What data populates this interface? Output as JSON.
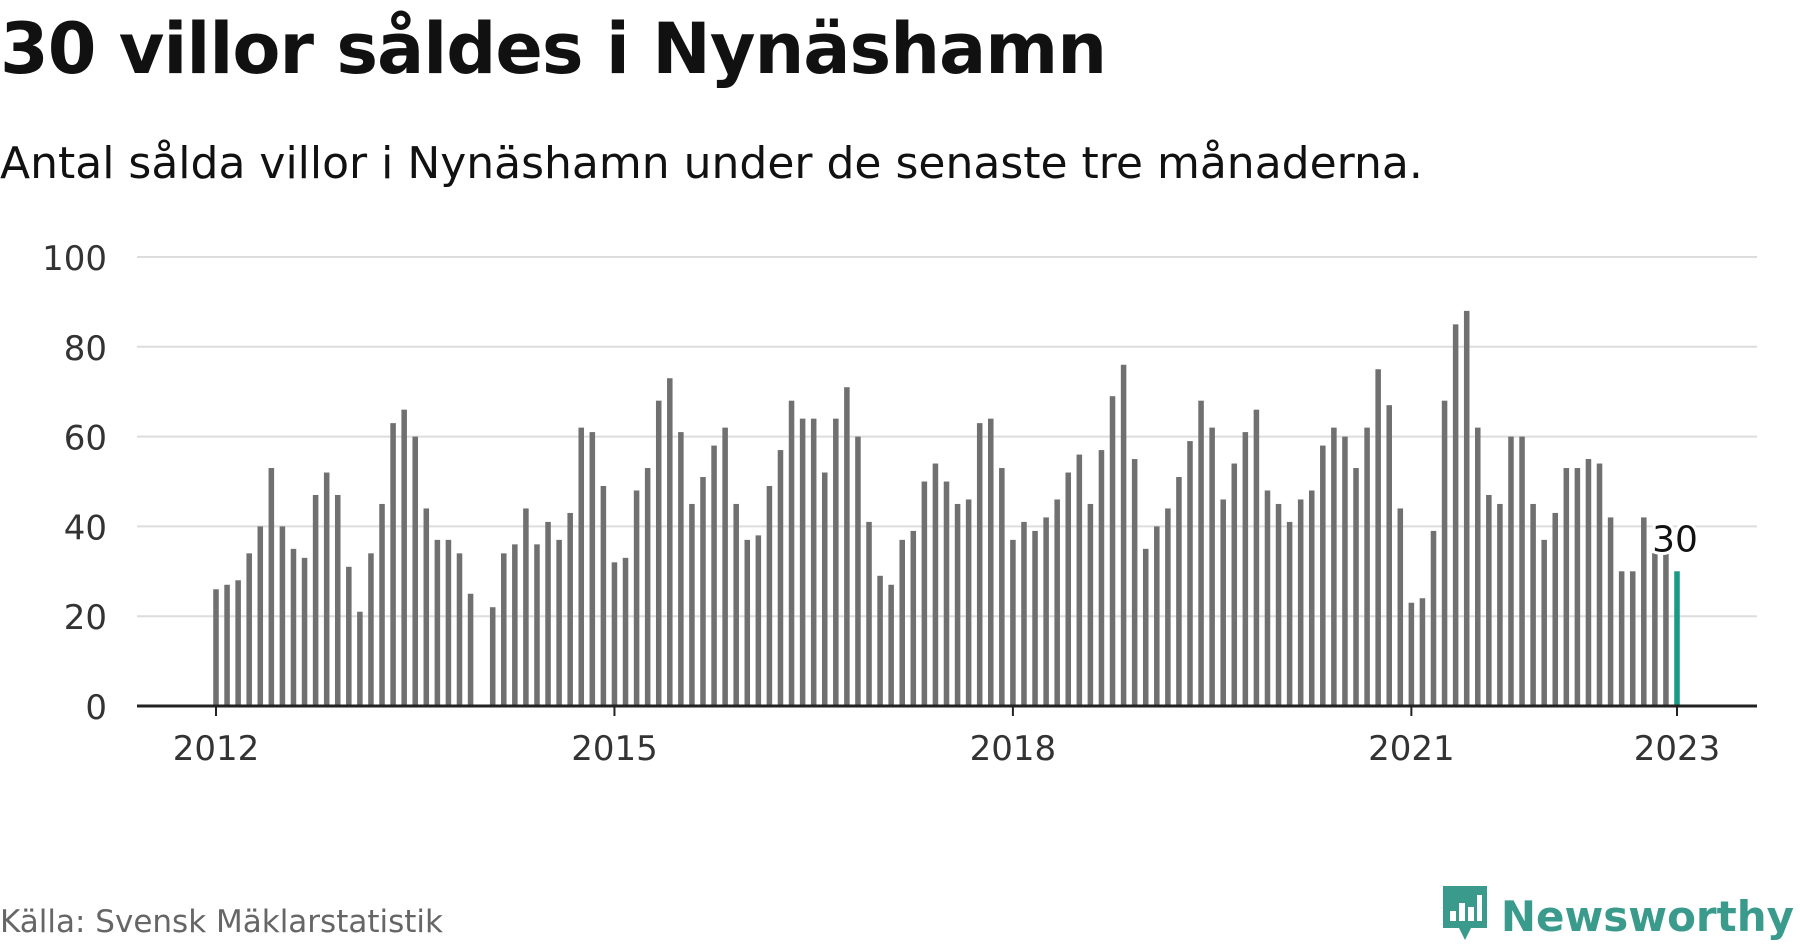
{
  "header": {
    "title": "30 villor såldes i Nynäshamn",
    "subtitle": "Antal sålda villor i Nynäshamn under de senaste tre månaderna."
  },
  "footer": {
    "source": "Källa: Svensk Mäklarstatistik",
    "brand": "Newsworthy",
    "brand_icon": "chart-bubble-icon"
  },
  "colors": {
    "bar": "#707070",
    "highlight": "#1a9a86",
    "grid": "#dddddd",
    "axis": "#222222",
    "brand": "#3a9a8c"
  },
  "chart_data": {
    "type": "bar",
    "title": "30 villor såldes i Nynäshamn",
    "xlabel": "",
    "ylabel": "",
    "ylim": [
      0,
      100
    ],
    "y_ticks": [
      0,
      20,
      40,
      60,
      80,
      100
    ],
    "x_ticks": [
      "2012",
      "2015",
      "2018",
      "2021",
      "2023"
    ],
    "x_start": "2012-01",
    "x_end": "2023-01",
    "highlight_label": "30",
    "grid": true,
    "legend": "none",
    "x": [
      "2012-01",
      "2012-02",
      "2012-03",
      "2012-04",
      "2012-05",
      "2012-06",
      "2012-07",
      "2012-08",
      "2012-09",
      "2012-10",
      "2012-11",
      "2012-12",
      "2013-01",
      "2013-02",
      "2013-03",
      "2013-04",
      "2013-05",
      "2013-06",
      "2013-07",
      "2013-08",
      "2013-09",
      "2013-10",
      "2013-11",
      "2013-12",
      "2014-01",
      "2014-02",
      "2014-03",
      "2014-04",
      "2014-05",
      "2014-06",
      "2014-07",
      "2014-08",
      "2014-09",
      "2014-10",
      "2014-11",
      "2014-12",
      "2015-01",
      "2015-02",
      "2015-03",
      "2015-04",
      "2015-05",
      "2015-06",
      "2015-07",
      "2015-08",
      "2015-09",
      "2015-10",
      "2015-11",
      "2015-12",
      "2016-01",
      "2016-02",
      "2016-03",
      "2016-04",
      "2016-05",
      "2016-06",
      "2016-07",
      "2016-08",
      "2016-09",
      "2016-10",
      "2016-11",
      "2016-12",
      "2017-01",
      "2017-02",
      "2017-03",
      "2017-04",
      "2017-05",
      "2017-06",
      "2017-07",
      "2017-08",
      "2017-09",
      "2017-10",
      "2017-11",
      "2017-12",
      "2018-01",
      "2018-02",
      "2018-03",
      "2018-04",
      "2018-05",
      "2018-06",
      "2018-07",
      "2018-08",
      "2018-09",
      "2018-10",
      "2018-11",
      "2018-12",
      "2019-01",
      "2019-02",
      "2019-03",
      "2019-04",
      "2019-05",
      "2019-06",
      "2019-07",
      "2019-08",
      "2019-09",
      "2019-10",
      "2019-11",
      "2019-12",
      "2020-01",
      "2020-02",
      "2020-03",
      "2020-04",
      "2020-05",
      "2020-06",
      "2020-07",
      "2020-08",
      "2020-09",
      "2020-10",
      "2020-11",
      "2020-12",
      "2021-01",
      "2021-02",
      "2021-03",
      "2021-04",
      "2021-05",
      "2021-06",
      "2021-07",
      "2021-08",
      "2021-09",
      "2021-10",
      "2021-11",
      "2021-12",
      "2022-01",
      "2022-02",
      "2022-03",
      "2022-04",
      "2022-05",
      "2022-06",
      "2022-07",
      "2022-08",
      "2022-09",
      "2022-10",
      "2022-11",
      "2022-12",
      "2023-01"
    ],
    "values": [
      26,
      27,
      28,
      34,
      40,
      53,
      40,
      35,
      33,
      47,
      52,
      47,
      31,
      21,
      34,
      45,
      63,
      66,
      60,
      44,
      37,
      37,
      34,
      25,
      null,
      22,
      34,
      36,
      44,
      36,
      41,
      37,
      43,
      62,
      61,
      49,
      32,
      33,
      48,
      53,
      68,
      73,
      61,
      45,
      51,
      58,
      62,
      45,
      37,
      38,
      49,
      57,
      68,
      64,
      64,
      52,
      64,
      71,
      60,
      41,
      29,
      27,
      37,
      39,
      50,
      54,
      50,
      45,
      46,
      63,
      64,
      53,
      37,
      41,
      39,
      42,
      46,
      52,
      56,
      45,
      57,
      69,
      76,
      55,
      35,
      40,
      44,
      51,
      59,
      68,
      62,
      46,
      54,
      61,
      66,
      48,
      45,
      41,
      46,
      48,
      58,
      62,
      60,
      53,
      62,
      75,
      67,
      44,
      23,
      24,
      39,
      68,
      85,
      88,
      62,
      47,
      45,
      60,
      60,
      45,
      37,
      43,
      53,
      53,
      55,
      54,
      42,
      30,
      30,
      42,
      35,
      34,
      30
    ]
  }
}
